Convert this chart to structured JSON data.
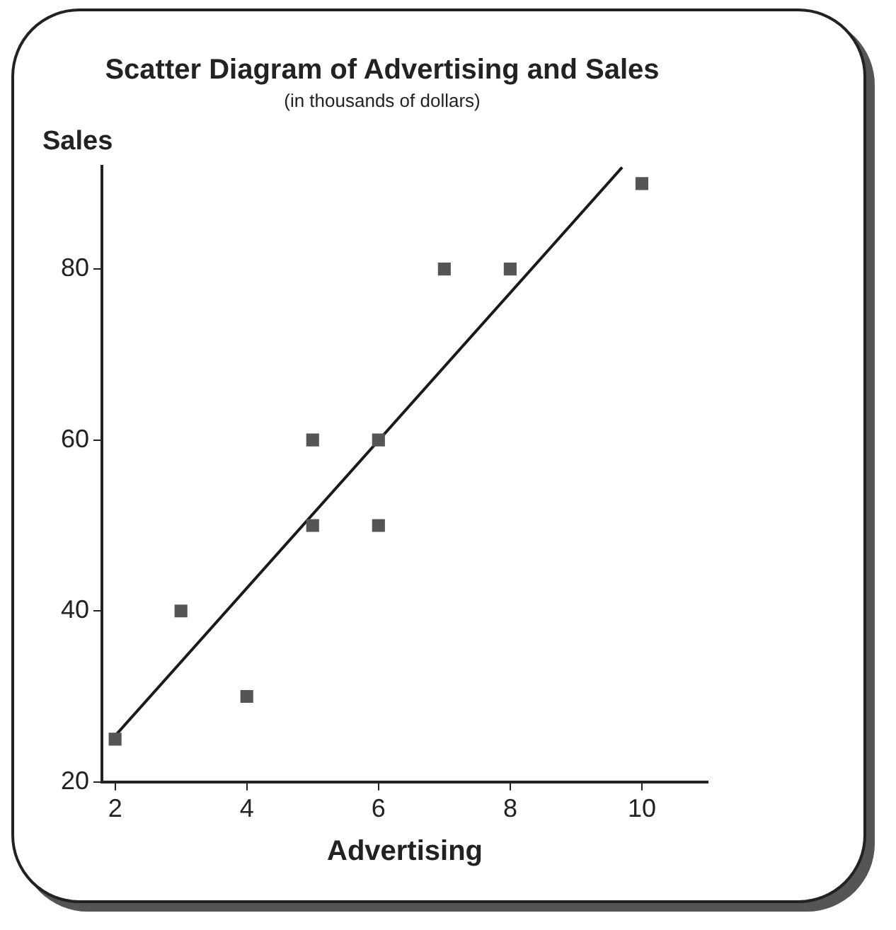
{
  "chart_data": {
    "type": "scatter",
    "title": "Scatter Diagram of Advertising and Sales",
    "subtitle": "(in thousands of dollars)",
    "xlabel": "Advertising",
    "ylabel": "Sales",
    "xlim": [
      1.8,
      11
    ],
    "ylim": [
      20,
      92
    ],
    "xticks": [
      2,
      4,
      6,
      8,
      10
    ],
    "yticks": [
      20,
      40,
      60,
      80
    ],
    "grid": false,
    "legend": false,
    "marker": "square",
    "series": [
      {
        "type": "scatter",
        "color": "#555555",
        "x": [
          2,
          3,
          4,
          5,
          5,
          6,
          6,
          7,
          8,
          10
        ],
        "values": [
          25,
          40,
          30,
          50,
          60,
          50,
          60,
          80,
          80,
          90
        ]
      },
      {
        "type": "line",
        "color": "#1a1a1a",
        "x": [
          2,
          9.7
        ],
        "values": [
          25.4,
          91.9
        ],
        "marker": "none",
        "line_style": "solid"
      }
    ]
  }
}
